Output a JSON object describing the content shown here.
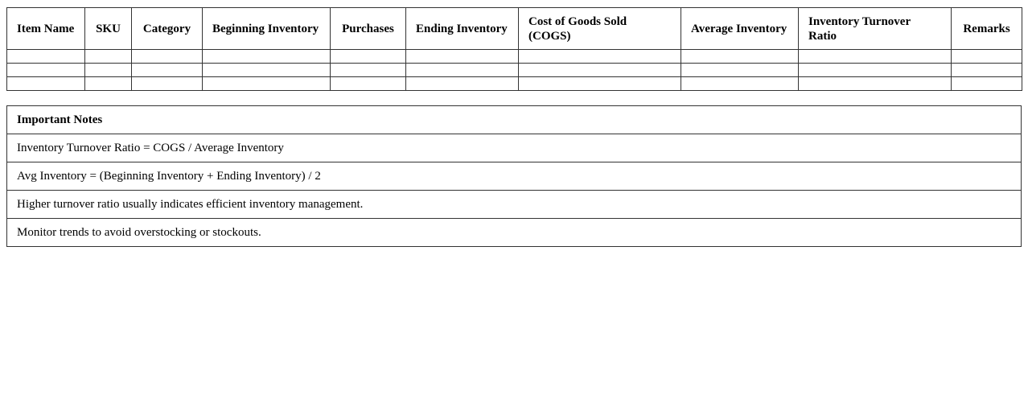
{
  "inventory_table": {
    "headers": [
      "Item Name",
      "SKU",
      "Category",
      "Beginning Inventory",
      "Purchases",
      "Ending Inventory",
      "Cost of Goods Sold (COGS)",
      "Average Inventory",
      "Inventory Turnover Ratio",
      "Remarks"
    ],
    "rows": [
      [
        "",
        "",
        "",
        "",
        "",
        "",
        "",
        "",
        "",
        ""
      ],
      [
        "",
        "",
        "",
        "",
        "",
        "",
        "",
        "",
        "",
        ""
      ],
      [
        "",
        "",
        "",
        "",
        "",
        "",
        "",
        "",
        "",
        ""
      ]
    ]
  },
  "notes": {
    "title": "Important Notes",
    "items": [
      "Inventory Turnover Ratio = COGS / Average Inventory",
      "Avg Inventory = (Beginning Inventory + Ending Inventory) / 2",
      "Higher turnover ratio usually indicates efficient inventory management.",
      "Monitor trends to avoid overstocking or stockouts."
    ]
  }
}
